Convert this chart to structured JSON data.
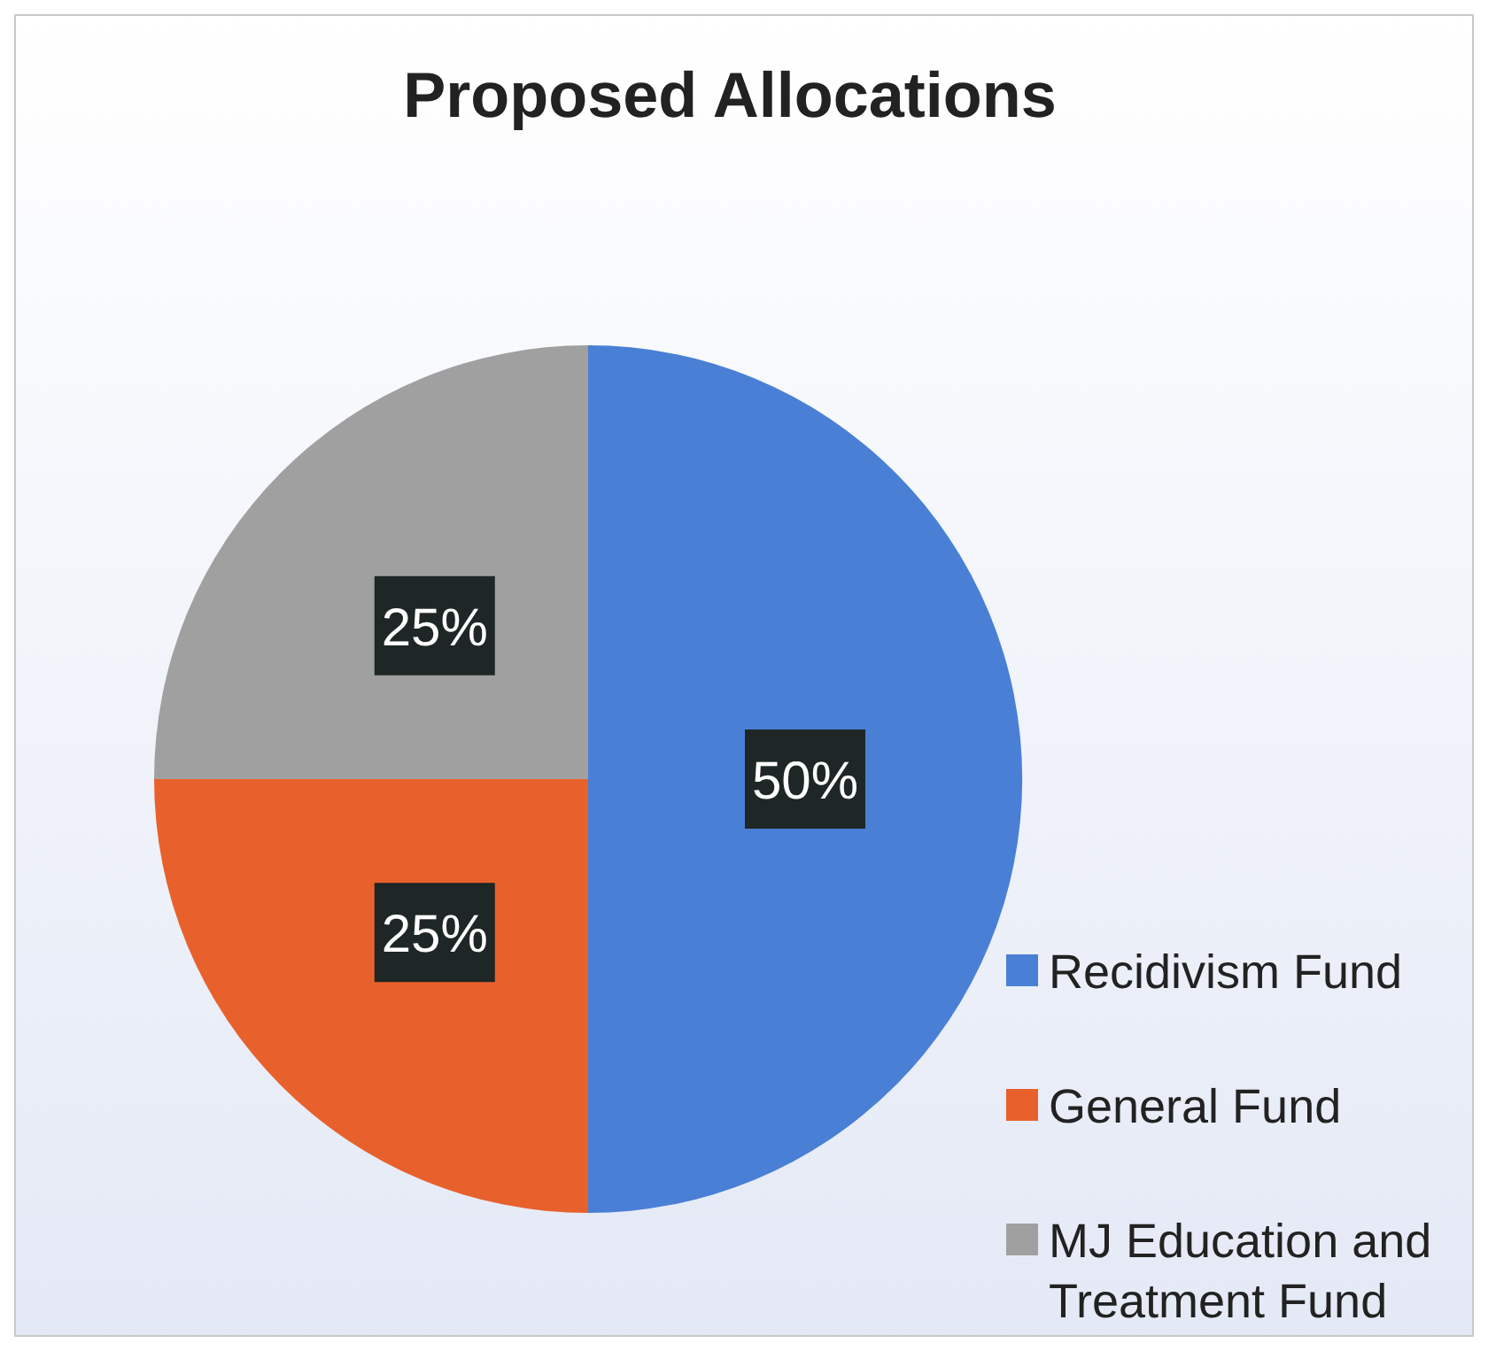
{
  "chart_data": {
    "type": "pie",
    "title": "Proposed Allocations",
    "categories": [
      "Recidivism Fund",
      "General Fund",
      "MJ Education and Treatment Fund"
    ],
    "values": [
      50,
      25,
      25
    ],
    "colors": [
      "#4a7fd6",
      "#e8612c",
      "#a0a0a0"
    ],
    "value_labels": [
      "50%",
      "25%",
      "25%"
    ],
    "legend": "bottom right"
  }
}
